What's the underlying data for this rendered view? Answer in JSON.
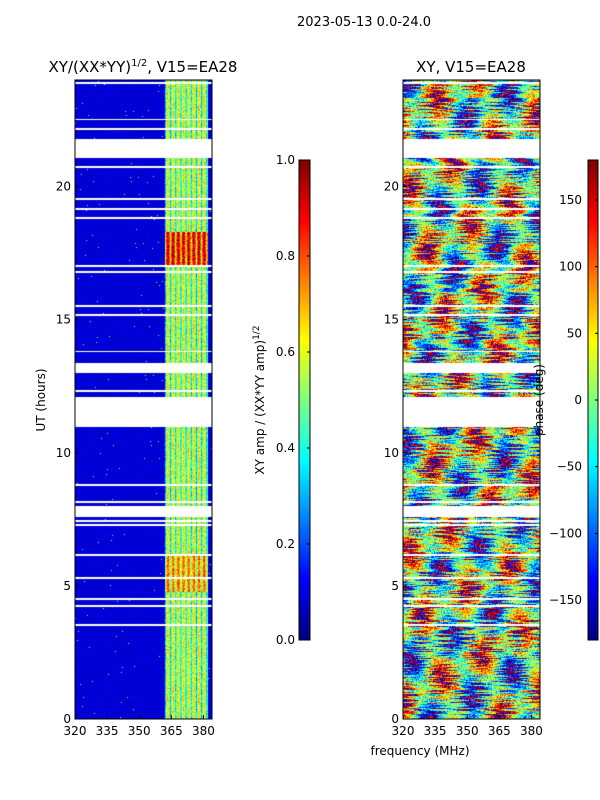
{
  "figure_title": "2023-05-13 0.0-24.0",
  "xlabel": "frequency (MHz)",
  "colors": {
    "jet": [
      "#00007f",
      "#0000ff",
      "#007fff",
      "#00ffff",
      "#7fff7f",
      "#ffff00",
      "#ff7f00",
      "#ff0000",
      "#7f0000"
    ],
    "gap": "#ffffff"
  },
  "chart_data": [
    {
      "type": "heatmap",
      "title": "XY/(XX*YY)$^{1/2}$, V15=EA28",
      "title_main": "XY/(XX*YY)",
      "title_sup": "1/2",
      "title_rest": ", V15=EA28",
      "xlabel": "",
      "ylabel": "UT (hours)",
      "xlim": [
        320,
        384
      ],
      "ylim": [
        0,
        24
      ],
      "xticks": [
        "320",
        "335",
        "350",
        "365",
        "380"
      ],
      "xtick_values": [
        320,
        335,
        350,
        365,
        380
      ],
      "yticks": [
        "0",
        "5",
        "10",
        "15",
        "20"
      ],
      "ytick_values": [
        0,
        5,
        10,
        15,
        20
      ],
      "data_gaps_hours": [
        [
          21.1,
          21.8
        ],
        [
          11.0,
          12.1
        ],
        [
          13.0,
          13.4
        ],
        [
          7.6,
          8.0
        ]
      ],
      "colorbar": {
        "label": "XY amp / (XX*YY amp)$^{1/2}$",
        "label_main": "XY amp / (XX*YY amp)",
        "label_sup": "1/2",
        "range": [
          0.0,
          1.0
        ],
        "ticks": [
          "0.0",
          "0.2",
          "0.4",
          "0.6",
          "0.8",
          "1.0"
        ],
        "tick_values": [
          0.0,
          0.2,
          0.4,
          0.6,
          0.8,
          1.0
        ]
      }
    },
    {
      "type": "heatmap",
      "title": "XY, V15=EA28",
      "xlabel": "frequency (MHz)",
      "ylabel": "",
      "xlim": [
        320,
        384
      ],
      "ylim": [
        0,
        24
      ],
      "xticks": [
        "320",
        "335",
        "350",
        "365",
        "380"
      ],
      "xtick_values": [
        320,
        335,
        350,
        365,
        380
      ],
      "yticks": [
        "0",
        "5",
        "10",
        "15",
        "20"
      ],
      "ytick_values": [
        0,
        5,
        10,
        15,
        20
      ],
      "data_gaps_hours": [
        [
          21.1,
          21.8
        ],
        [
          11.0,
          12.1
        ],
        [
          13.0,
          13.4
        ],
        [
          7.6,
          8.0
        ]
      ],
      "colorbar": {
        "label": "phase (deg)",
        "range": [
          -180,
          180
        ],
        "ticks": [
          "−150",
          "−100",
          "−50",
          "0",
          "50",
          "100",
          "150"
        ],
        "tick_values": [
          -150,
          -100,
          -50,
          0,
          50,
          100,
          150
        ]
      }
    }
  ]
}
